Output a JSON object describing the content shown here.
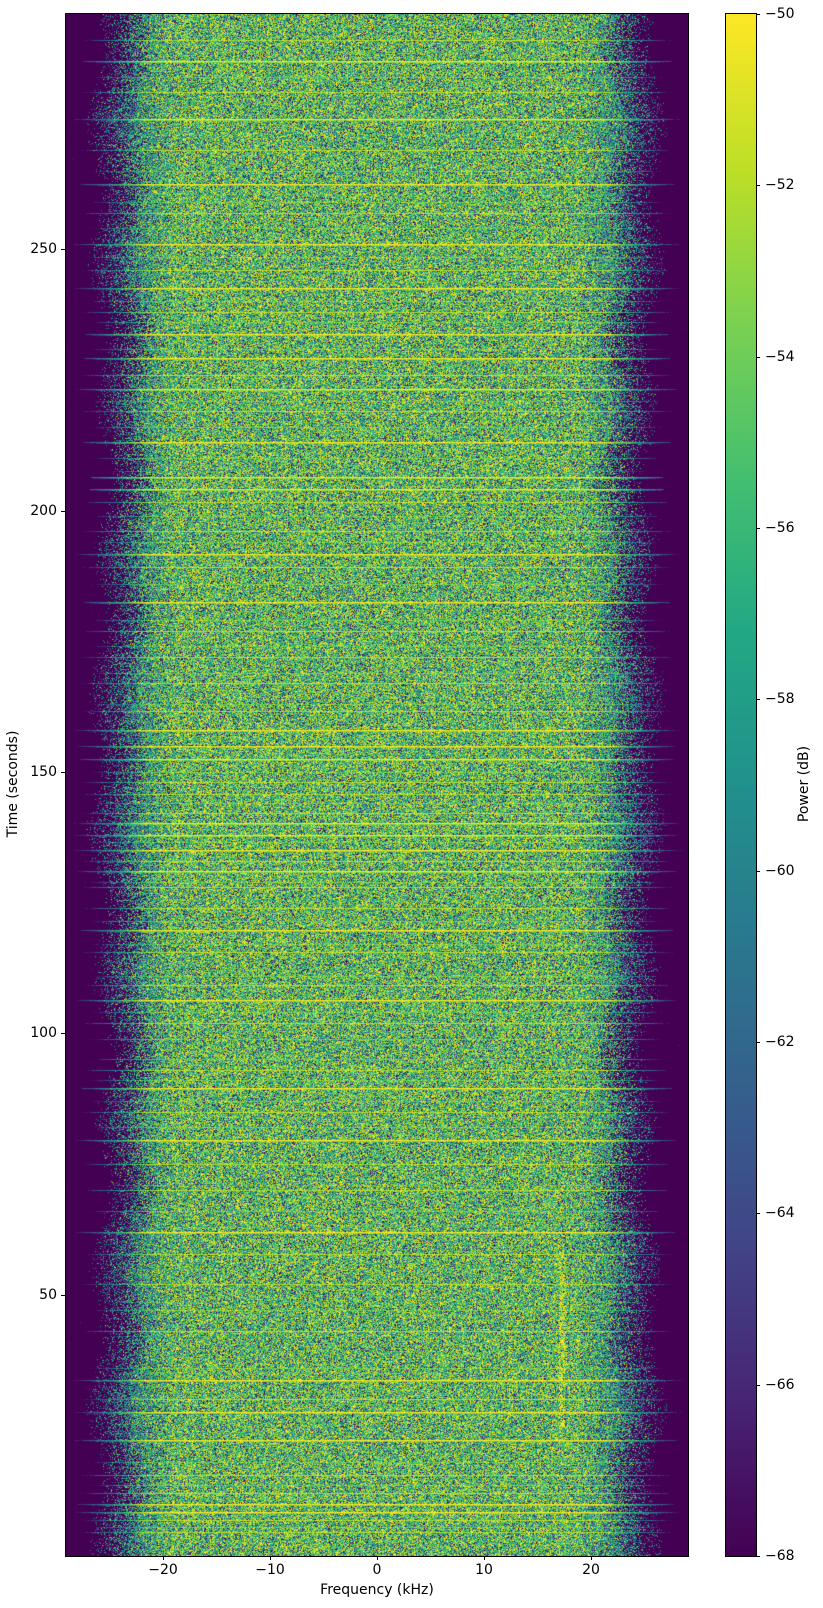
{
  "figure": {
    "background": "#ffffff",
    "text_color": "#000000"
  },
  "chart_data": {
    "type": "heatmap",
    "subtype": "spectrogram-waterfall",
    "title": "",
    "xlabel": "Frequency (kHz)",
    "ylabel": "Time (seconds)",
    "x_range_khz": [
      -29.1,
      29.1
    ],
    "y_range_seconds": [
      0,
      295
    ],
    "grid": false,
    "legend": null,
    "x_ticks": [
      {
        "value": -20,
        "label": "−20"
      },
      {
        "value": -10,
        "label": "−10"
      },
      {
        "value": 0,
        "label": "0"
      },
      {
        "value": 10,
        "label": "10"
      },
      {
        "value": 20,
        "label": "20"
      }
    ],
    "y_ticks": [
      {
        "value": 50,
        "label": "50"
      },
      {
        "value": 100,
        "label": "100"
      },
      {
        "value": 150,
        "label": "150"
      },
      {
        "value": 200,
        "label": "200"
      },
      {
        "value": 250,
        "label": "250"
      }
    ],
    "colorbar": {
      "label": "Power (dB)",
      "min_db": -68,
      "max_db": -50,
      "ticks": [
        {
          "value": -50,
          "label": "−50"
        },
        {
          "value": -52,
          "label": "−52"
        },
        {
          "value": -54,
          "label": "−54"
        },
        {
          "value": -56,
          "label": "−56"
        },
        {
          "value": -58,
          "label": "−58"
        },
        {
          "value": -60,
          "label": "−60"
        },
        {
          "value": -62,
          "label": "−62"
        },
        {
          "value": -64,
          "label": "−64"
        },
        {
          "value": -66,
          "label": "−66"
        },
        {
          "value": -68,
          "label": "−68"
        }
      ],
      "colormap": "viridis",
      "colormap_anchors": [
        [
          68,
          1,
          84
        ],
        [
          72,
          36,
          117
        ],
        [
          65,
          68,
          135
        ],
        [
          53,
          95,
          141
        ],
        [
          42,
          120,
          142
        ],
        [
          33,
          145,
          140
        ],
        [
          34,
          168,
          132
        ],
        [
          68,
          191,
          112
        ],
        [
          122,
          209,
          81
        ],
        [
          189,
          223,
          38
        ],
        [
          253,
          231,
          37
        ]
      ],
      "floor_color": "#440154",
      "peak_color": "#fde725"
    },
    "signal": {
      "noise_floor_db": -76,
      "passband_level_db": -54,
      "passband_flat_halfwidth_khz": 19,
      "rolloff_end_khz": 26.2,
      "rolloff_mixture_width_khz": 4.8,
      "level_slope_db_per_khz": 0.9,
      "edge_wobble_khz": 1.2,
      "line_atten_start_khz": 21.5,
      "line_atten_db_per_khz": 2.6,
      "random_seed": 42,
      "vertical_tones": [
        {
          "freq_khz": 17.3,
          "t_start_s": 24,
          "t_end_s": 58,
          "boost_db": 3
        },
        {
          "freq_khz": 12.5,
          "t_start_s": 26,
          "t_end_s": 42,
          "boost_db": 2
        }
      ],
      "interference_lines": [
        {
          "time_s": 286,
          "level_db": -50
        },
        {
          "time_s": 275,
          "level_db": -50
        },
        {
          "time_s": 262.5,
          "level_db": -50
        },
        {
          "time_s": 251,
          "level_db": -50
        },
        {
          "time_s": 242.5,
          "level_db": -50
        },
        {
          "time_s": 233.8,
          "level_db": -50
        },
        {
          "time_s": 229.2,
          "level_db": -50
        },
        {
          "time_s": 223.3,
          "level_db": -50
        },
        {
          "time_s": 213.2,
          "level_db": -50
        },
        {
          "time_s": 206.4,
          "level_db": -50
        },
        {
          "time_s": 204.1,
          "level_db": -50
        },
        {
          "time_s": 191.7,
          "level_db": -50
        },
        {
          "time_s": 182.6,
          "level_db": -50
        },
        {
          "time_s": 158,
          "level_db": -50
        },
        {
          "time_s": 155,
          "level_db": -50
        },
        {
          "time_s": 152.4,
          "level_db": -50
        },
        {
          "time_s": 140.3,
          "level_db": -50
        },
        {
          "time_s": 138,
          "level_db": -50
        },
        {
          "time_s": 135.1,
          "level_db": -50
        },
        {
          "time_s": 131,
          "level_db": -50
        },
        {
          "time_s": 119.8,
          "level_db": -50
        },
        {
          "time_s": 106.4,
          "level_db": -50
        },
        {
          "time_s": 89.6,
          "level_db": -50
        },
        {
          "time_s": 79.6,
          "level_db": -50
        },
        {
          "time_s": 62,
          "level_db": -50
        },
        {
          "time_s": 33.7,
          "level_db": -50
        },
        {
          "time_s": 27.6,
          "level_db": -50
        },
        {
          "time_s": 22.2,
          "level_db": -50
        },
        {
          "time_s": 10,
          "level_db": -50
        },
        {
          "time_s": 8.4,
          "level_db": -50
        },
        {
          "time_s": 290,
          "level_db": -52.5
        },
        {
          "time_s": 280,
          "level_db": -52.5
        },
        {
          "time_s": 269,
          "level_db": -52.5
        },
        {
          "time_s": 257,
          "level_db": -52.5
        },
        {
          "time_s": 246,
          "level_db": -52.5
        },
        {
          "time_s": 238,
          "level_db": -52.5
        },
        {
          "time_s": 226,
          "level_db": -52.5
        },
        {
          "time_s": 219.1,
          "level_db": -52.5
        },
        {
          "time_s": 201.7,
          "level_db": -52.5
        },
        {
          "time_s": 196,
          "level_db": -52.5
        },
        {
          "time_s": 189.2,
          "level_db": -52.5
        },
        {
          "time_s": 177,
          "level_db": -52.5
        },
        {
          "time_s": 172,
          "level_db": -52.5
        },
        {
          "time_s": 167,
          "level_db": -52.5
        },
        {
          "time_s": 161.6,
          "level_db": -52.5
        },
        {
          "time_s": 148,
          "level_db": -52.5
        },
        {
          "time_s": 145.7,
          "level_db": -52.5
        },
        {
          "time_s": 142.2,
          "level_db": -52.5
        },
        {
          "time_s": 133,
          "level_db": -52.5
        },
        {
          "time_s": 127.9,
          "level_db": -52.5
        },
        {
          "time_s": 124,
          "level_db": -52.5
        },
        {
          "time_s": 115.6,
          "level_db": -52.5
        },
        {
          "time_s": 109.3,
          "level_db": -52.5
        },
        {
          "time_s": 102,
          "level_db": -52.5
        },
        {
          "time_s": 93,
          "level_db": -52.5
        },
        {
          "time_s": 85,
          "level_db": -52.5
        },
        {
          "time_s": 75,
          "level_db": -52.5
        },
        {
          "time_s": 70,
          "level_db": -52.5
        },
        {
          "time_s": 57.8,
          "level_db": -52.5
        },
        {
          "time_s": 52,
          "level_db": -52.5
        },
        {
          "time_s": 43,
          "level_db": -52.5
        },
        {
          "time_s": 30,
          "level_db": -52.5
        },
        {
          "time_s": 15.5,
          "level_db": -52.5
        },
        {
          "time_s": 12,
          "level_db": -52.5
        },
        {
          "time_s": 6.9,
          "level_db": -52.5
        },
        {
          "time_s": 4.5,
          "level_db": -52.5
        },
        {
          "time_s": 283,
          "level_db": -55
        },
        {
          "time_s": 265,
          "level_db": -55
        },
        {
          "time_s": 259,
          "level_db": -55
        },
        {
          "time_s": 254,
          "level_db": -55
        },
        {
          "time_s": 248.5,
          "level_db": -55
        },
        {
          "time_s": 240,
          "level_db": -55
        },
        {
          "time_s": 236,
          "level_db": -55
        },
        {
          "time_s": 231,
          "level_db": -55
        },
        {
          "time_s": 221,
          "level_db": -55
        },
        {
          "time_s": 216,
          "level_db": -55
        },
        {
          "time_s": 210,
          "level_db": -55
        },
        {
          "time_s": 199,
          "level_db": -55
        },
        {
          "time_s": 194,
          "level_db": -55
        },
        {
          "time_s": 186,
          "level_db": -55
        },
        {
          "time_s": 179,
          "level_db": -55
        },
        {
          "time_s": 174,
          "level_db": -55
        },
        {
          "time_s": 169,
          "level_db": -55
        },
        {
          "time_s": 163,
          "level_db": -55
        },
        {
          "time_s": 150,
          "level_db": -55
        },
        {
          "time_s": 144,
          "level_db": -55
        },
        {
          "time_s": 136.5,
          "level_db": -55
        },
        {
          "time_s": 129,
          "level_db": -55
        },
        {
          "time_s": 121.5,
          "level_db": -55
        },
        {
          "time_s": 117,
          "level_db": -55
        },
        {
          "time_s": 111,
          "level_db": -55
        },
        {
          "time_s": 104,
          "level_db": -55
        },
        {
          "time_s": 99,
          "level_db": -55
        },
        {
          "time_s": 95,
          "level_db": -55
        },
        {
          "time_s": 91,
          "level_db": -55
        },
        {
          "time_s": 87,
          "level_db": -55
        },
        {
          "time_s": 82,
          "level_db": -55
        },
        {
          "time_s": 66,
          "level_db": -55
        },
        {
          "time_s": 47,
          "level_db": -55
        },
        {
          "time_s": 36,
          "level_db": -55
        },
        {
          "time_s": 18,
          "level_db": -55
        },
        {
          "time_s": 13.5,
          "level_db": -55
        },
        {
          "time_s": 5.5,
          "level_db": -55
        },
        {
          "time_s": 288,
          "level_db": -59
        },
        {
          "time_s": 272,
          "level_db": -59
        },
        {
          "time_s": 260.5,
          "level_db": -59
        },
        {
          "time_s": 244,
          "level_db": -59
        },
        {
          "time_s": 220,
          "level_db": -59
        },
        {
          "time_s": 207.5,
          "level_db": -59
        },
        {
          "time_s": 156.5,
          "level_db": -59
        },
        {
          "time_s": 153.5,
          "level_db": -59
        },
        {
          "time_s": 139,
          "level_db": -59
        },
        {
          "time_s": 125.5,
          "level_db": -59
        },
        {
          "time_s": 100.5,
          "level_db": -59
        },
        {
          "time_s": 84,
          "level_db": -59
        },
        {
          "time_s": 71,
          "level_db": -59
        },
        {
          "time_s": 63,
          "level_db": -59
        },
        {
          "time_s": 55,
          "level_db": -59
        },
        {
          "time_s": 48.5,
          "level_db": -59
        },
        {
          "time_s": 42,
          "level_db": -59
        },
        {
          "time_s": 35,
          "level_db": -59
        },
        {
          "time_s": 29,
          "level_db": -59
        },
        {
          "time_s": 23.5,
          "level_db": -59
        },
        {
          "time_s": 17,
          "level_db": -59
        },
        {
          "time_s": 11,
          "level_db": -59
        },
        {
          "time_s": 7.5,
          "level_db": -59
        },
        {
          "time_s": 3,
          "level_db": -59
        }
      ]
    }
  }
}
